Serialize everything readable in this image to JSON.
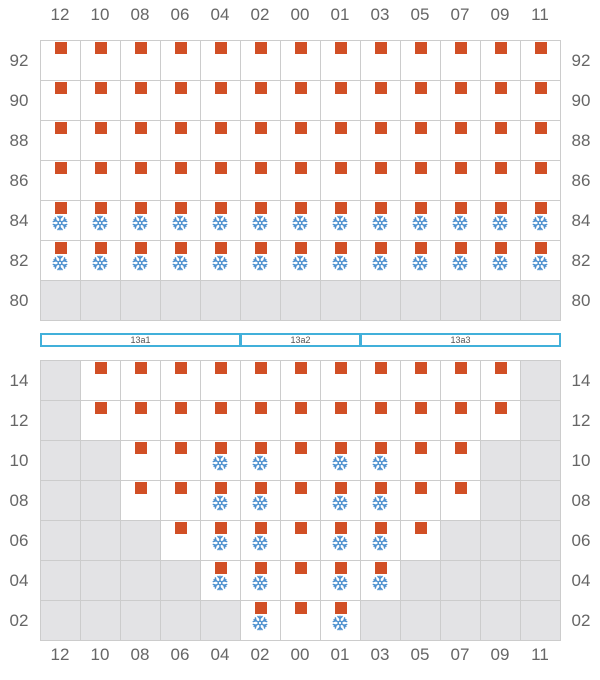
{
  "columns": [
    "12",
    "10",
    "08",
    "06",
    "04",
    "02",
    "00",
    "01",
    "03",
    "05",
    "07",
    "09",
    "11"
  ],
  "colors": {
    "item": "#d14f25",
    "cold": "#4e91cf",
    "zone_border": "#41b0da",
    "grid_line": "#cccccc",
    "unavailable": "#e3e3e5"
  },
  "icons": {
    "item": "orange-square-icon",
    "cold": "snowflake-icon"
  },
  "upper_block": {
    "rows": [
      {
        "label": "92",
        "cells": [
          "S",
          "S",
          "S",
          "S",
          "S",
          "S",
          "S",
          "S",
          "S",
          "S",
          "S",
          "S",
          "S"
        ]
      },
      {
        "label": "90",
        "cells": [
          "S",
          "S",
          "S",
          "S",
          "S",
          "S",
          "S",
          "S",
          "S",
          "S",
          "S",
          "S",
          "S"
        ]
      },
      {
        "label": "88",
        "cells": [
          "S",
          "S",
          "S",
          "S",
          "S",
          "S",
          "S",
          "S",
          "S",
          "S",
          "S",
          "S",
          "S"
        ]
      },
      {
        "label": "86",
        "cells": [
          "S",
          "S",
          "S",
          "S",
          "S",
          "S",
          "S",
          "S",
          "S",
          "S",
          "S",
          "S",
          "S"
        ]
      },
      {
        "label": "84",
        "cells": [
          "SC",
          "SC",
          "SC",
          "SC",
          "SC",
          "SC",
          "SC",
          "SC",
          "SC",
          "SC",
          "SC",
          "SC",
          "SC"
        ]
      },
      {
        "label": "82",
        "cells": [
          "SC",
          "SC",
          "SC",
          "SC",
          "SC",
          "SC",
          "SC",
          "SC",
          "SC",
          "SC",
          "SC",
          "SC",
          "SC"
        ]
      },
      {
        "label": "80",
        "cells": [
          "X",
          "X",
          "X",
          "X",
          "X",
          "X",
          "X",
          "X",
          "X",
          "X",
          "X",
          "X",
          "X"
        ]
      }
    ]
  },
  "zones": [
    {
      "label": "13a1",
      "span": [
        0,
        4
      ]
    },
    {
      "label": "13a2",
      "span": [
        5,
        7
      ]
    },
    {
      "label": "13a3",
      "span": [
        8,
        12
      ]
    }
  ],
  "lower_block": {
    "rows": [
      {
        "label": "14",
        "cells": [
          "X",
          "S",
          "S",
          "S",
          "S",
          "S",
          "S",
          "S",
          "S",
          "S",
          "S",
          "S",
          "X"
        ]
      },
      {
        "label": "12",
        "cells": [
          "X",
          "S",
          "S",
          "S",
          "S",
          "S",
          "S",
          "S",
          "S",
          "S",
          "S",
          "S",
          "X"
        ]
      },
      {
        "label": "10",
        "cells": [
          "X",
          "X",
          "S",
          "S",
          "SC",
          "SC",
          "S",
          "SC",
          "SC",
          "S",
          "S",
          "X",
          "X"
        ]
      },
      {
        "label": "08",
        "cells": [
          "X",
          "X",
          "S",
          "S",
          "SC",
          "SC",
          "S",
          "SC",
          "SC",
          "S",
          "S",
          "X",
          "X"
        ]
      },
      {
        "label": "06",
        "cells": [
          "X",
          "X",
          "X",
          "S",
          "SC",
          "SC",
          "S",
          "SC",
          "SC",
          "S",
          "X",
          "X",
          "X"
        ]
      },
      {
        "label": "04",
        "cells": [
          "X",
          "X",
          "X",
          "X",
          "SC",
          "SC",
          "S",
          "SC",
          "SC",
          "X",
          "X",
          "X",
          "X"
        ]
      },
      {
        "label": "02",
        "cells": [
          "X",
          "X",
          "X",
          "X",
          "X",
          "SC",
          "S",
          "SC",
          "X",
          "X",
          "X",
          "X",
          "X"
        ]
      }
    ]
  }
}
